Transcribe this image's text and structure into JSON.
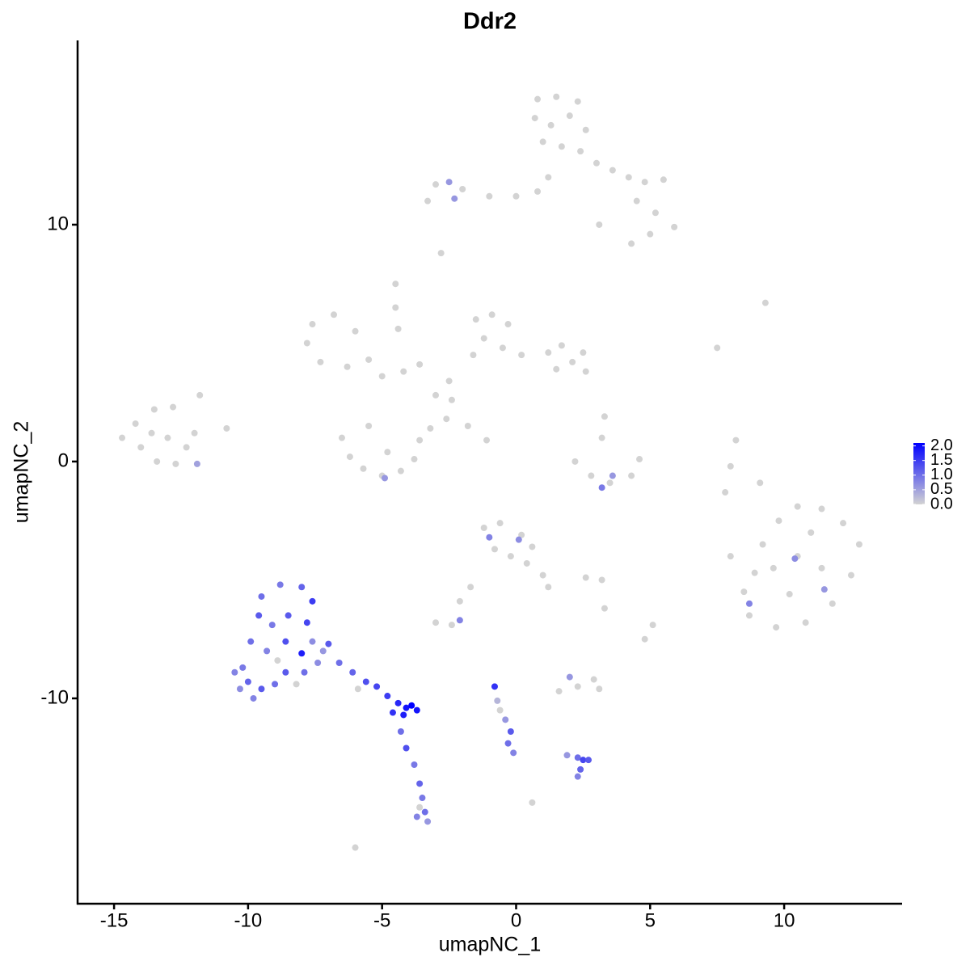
{
  "chart_data": {
    "type": "scatter",
    "title": "Ddr2",
    "x_label": "umapNC_1",
    "y_label": "umapNC_2",
    "xlim": [
      -16.36,
      14.37
    ],
    "ylim": [
      -18.67,
      17.78
    ],
    "xticks": [
      -15,
      -10,
      -5,
      0,
      5,
      10
    ],
    "yticks": [
      -10,
      0,
      10
    ],
    "color_low": "#d3d3d3",
    "color_high": "#0000ff",
    "colorlim": [
      0,
      2.1
    ],
    "colorbar_ticks": [
      {
        "value": 0,
        "label": "0.0"
      },
      {
        "value": 0.5,
        "label": "0.5"
      },
      {
        "value": 1,
        "label": "1.0"
      },
      {
        "value": 1.5,
        "label": "1.5"
      },
      {
        "value": 2,
        "label": "2.0"
      }
    ],
    "x": [
      0.8,
      1.5,
      2.3,
      0.7,
      1.3,
      2.0,
      2.6,
      1.0,
      1.7,
      2.4,
      3.0,
      3.6,
      4.2,
      4.8,
      5.5,
      4.5,
      5.2,
      5.9,
      5.0,
      4.3,
      1.2,
      0.8,
      0.0,
      -1.0,
      -2.0,
      -3.0,
      -3.3,
      -2.5,
      -2.3,
      3.1,
      -2.8,
      -4.5,
      -7.6,
      -6.8,
      -6.0,
      -7.8,
      -7.3,
      -6.3,
      -5.5,
      -5.0,
      -4.2,
      -3.6,
      -4.5,
      -4.4,
      -1.5,
      -0.9,
      -0.3,
      -1.2,
      -0.5,
      -1.6,
      0.2,
      1.2,
      1.7,
      2.1,
      2.5,
      2.6,
      1.5,
      -2.5,
      -3.0,
      -2.4,
      -2.6,
      -3.2,
      -1.8,
      -1.1,
      -6.5,
      -6.2,
      -5.7,
      -5.0,
      -4.3,
      -3.8,
      -3.6,
      -5.5,
      -4.8,
      -4.9,
      -14.7,
      -14.2,
      -13.5,
      -12.8,
      -14.0,
      -13.4,
      -12.7,
      -12.3,
      -13.0,
      -13.6,
      -12.0,
      -11.8,
      -11.9,
      -10.8,
      2.2,
      2.8,
      3.5,
      4.3,
      4.6,
      3.2,
      3.6,
      3.2,
      3.3,
      8.0,
      8.5,
      8.7,
      9.2,
      9.8,
      10.5,
      11.4,
      12.2,
      12.8,
      12.5,
      11.8,
      10.8,
      9.7,
      9.6,
      10.5,
      11.4,
      10.2,
      11.0,
      8.9,
      10.4,
      8.7,
      11.5,
      7.8,
      9.1,
      8.0,
      -1.2,
      -0.6,
      0.2,
      0.6,
      -0.8,
      -0.2,
      0.4,
      1.0,
      1.2,
      -1.0,
      0.1,
      -1.7,
      -2.1,
      2.6,
      3.2,
      -3.0,
      -2.4,
      -2.1,
      1.6,
      2.3,
      3.1,
      2.9,
      2.0,
      4.8,
      5.1,
      3.3,
      -0.8,
      -0.7,
      -0.4,
      -0.2,
      -0.3,
      -0.1,
      -0.6,
      1.9,
      2.3,
      2.5,
      2.7,
      2.4,
      2.3,
      0.6,
      -6.0,
      -9.5,
      -8.8,
      -8.0,
      -7.6,
      -9.6,
      -9.1,
      -8.5,
      -7.8,
      -7.6,
      -9.9,
      -9.3,
      -8.6,
      -8.0,
      -10.2,
      -10.5,
      -10.0,
      -9.5,
      -9.8,
      -9.0,
      -8.6,
      -7.9,
      -7.4,
      -8.2,
      -7.2,
      -10.3,
      -8.9,
      -7.0,
      -6.6,
      -6.1,
      -5.6,
      -5.2,
      -4.8,
      -4.4,
      -4.1,
      -3.9,
      -4.2,
      -4.6,
      -3.7,
      -5.9,
      -4.3,
      -4.1,
      -3.8,
      -3.6,
      -3.5,
      -3.4,
      -3.7,
      -3.3,
      -3.6,
      9.3,
      7.5,
      8.2
    ],
    "y": [
      15.3,
      15.4,
      15.2,
      14.5,
      14.2,
      14.6,
      14.0,
      13.5,
      13.3,
      13.1,
      12.6,
      12.3,
      12.0,
      11.8,
      11.9,
      11.0,
      10.5,
      9.9,
      9.6,
      9.2,
      12.0,
      11.4,
      11.2,
      11.2,
      11.5,
      11.7,
      11.0,
      11.8,
      11.1,
      10.0,
      8.8,
      7.5,
      5.8,
      6.2,
      5.5,
      5.0,
      4.2,
      4.0,
      4.3,
      3.6,
      3.8,
      4.1,
      6.5,
      5.6,
      6.0,
      6.2,
      5.8,
      5.2,
      4.8,
      4.5,
      4.5,
      4.6,
      4.9,
      4.2,
      4.6,
      3.8,
      3.9,
      3.4,
      2.8,
      2.6,
      1.8,
      1.4,
      1.5,
      0.9,
      1.0,
      0.2,
      -0.3,
      -0.6,
      -0.4,
      0.1,
      0.9,
      1.5,
      0.4,
      -0.7,
      1.0,
      1.6,
      2.2,
      2.3,
      0.6,
      0.0,
      -0.1,
      0.6,
      1.0,
      1.2,
      1.2,
      2.8,
      -0.1,
      1.4,
      0.0,
      -0.6,
      -0.9,
      -0.6,
      0.1,
      -1.1,
      -0.6,
      1.0,
      1.9,
      -4.0,
      -5.5,
      -6.5,
      -3.5,
      -2.5,
      -1.9,
      -2.0,
      -2.6,
      -3.5,
      -4.8,
      -6.0,
      -6.8,
      -7.0,
      -4.5,
      -4.0,
      -4.5,
      -5.6,
      -3.0,
      -4.7,
      -4.1,
      -6.0,
      -5.4,
      -1.3,
      -0.9,
      -0.2,
      -2.8,
      -2.6,
      -3.1,
      -3.6,
      -3.7,
      -4.0,
      -4.3,
      -4.8,
      -5.3,
      -3.2,
      -3.3,
      -5.3,
      -5.9,
      -4.9,
      -5.0,
      -6.8,
      -6.9,
      -6.7,
      -9.7,
      -9.5,
      -9.6,
      -9.2,
      -9.1,
      -7.5,
      -6.9,
      -6.2,
      -9.5,
      -10.1,
      -10.9,
      -11.4,
      -11.9,
      -12.3,
      -10.5,
      -12.4,
      -12.5,
      -12.6,
      -12.6,
      -13.0,
      -13.3,
      -14.4,
      -16.3,
      -5.7,
      -5.2,
      -5.3,
      -5.9,
      -6.5,
      -6.9,
      -6.5,
      -6.8,
      -7.6,
      -7.6,
      -8.0,
      -7.6,
      -8.1,
      -8.7,
      -8.9,
      -9.3,
      -9.6,
      -10.0,
      -9.4,
      -8.9,
      -8.9,
      -8.5,
      -9.4,
      -8.0,
      -9.6,
      -8.4,
      -7.7,
      -8.5,
      -8.9,
      -9.3,
      -9.5,
      -9.9,
      -10.2,
      -10.4,
      -10.3,
      -10.7,
      -10.6,
      -10.5,
      -9.6,
      -11.4,
      -12.1,
      -12.8,
      -13.6,
      -14.2,
      -14.8,
      -15.0,
      -15.2,
      -14.6,
      6.7,
      4.8,
      0.9
    ],
    "expression": [
      0,
      0,
      0,
      0,
      0,
      0,
      0,
      0,
      0,
      0,
      0,
      0,
      0,
      0,
      0,
      0,
      0,
      0,
      0,
      0,
      0,
      0,
      0,
      0,
      0,
      0,
      0,
      0.6,
      0.6,
      0,
      0,
      0,
      0,
      0,
      0,
      0,
      0,
      0,
      0,
      0,
      0,
      0,
      0,
      0,
      0,
      0,
      0,
      0,
      0,
      0,
      0,
      0,
      0,
      0,
      0,
      0,
      0,
      0,
      0,
      0,
      0,
      0,
      0,
      0,
      0,
      0,
      0,
      0,
      0,
      0,
      0,
      0,
      0,
      0.6,
      0,
      0,
      0,
      0,
      0,
      0,
      0,
      0,
      0,
      0,
      0,
      0,
      0.5,
      0,
      0,
      0,
      0,
      0,
      0,
      0.9,
      0.6,
      0,
      0,
      0,
      0,
      0,
      0,
      0,
      0,
      0,
      0,
      0,
      0,
      0,
      0,
      0,
      0,
      0,
      0,
      0,
      0,
      0,
      0.7,
      0.8,
      0.6,
      0,
      0,
      0,
      0,
      0,
      0,
      0,
      0,
      0,
      0,
      0,
      0,
      0.8,
      0.7,
      0,
      0,
      0,
      0,
      0,
      0,
      0.8,
      0,
      0,
      0,
      0,
      0.6,
      0,
      0,
      0,
      1.6,
      0.3,
      0.6,
      1.2,
      1.0,
      0.8,
      0,
      0.6,
      1.0,
      1.4,
      1.2,
      1.1,
      0.8,
      0,
      0,
      1.0,
      0.9,
      1.1,
      1.5,
      1.2,
      0.9,
      1.2,
      1.4,
      0.7,
      1.0,
      0.8,
      1.3,
      1.8,
      0.9,
      0.8,
      1.1,
      1.2,
      0.8,
      1.0,
      1.2,
      1.0,
      0.7,
      0,
      0.6,
      0.7,
      0,
      1.2,
      1.0,
      1.1,
      1.3,
      1.4,
      1.5,
      1.7,
      1.9,
      2.1,
      1.8,
      1.6,
      1.9,
      0,
      1.0,
      1.3,
      0.9,
      1.1,
      0.9,
      1.0,
      0.8,
      0.6,
      0,
      0,
      0,
      0
    ]
  }
}
